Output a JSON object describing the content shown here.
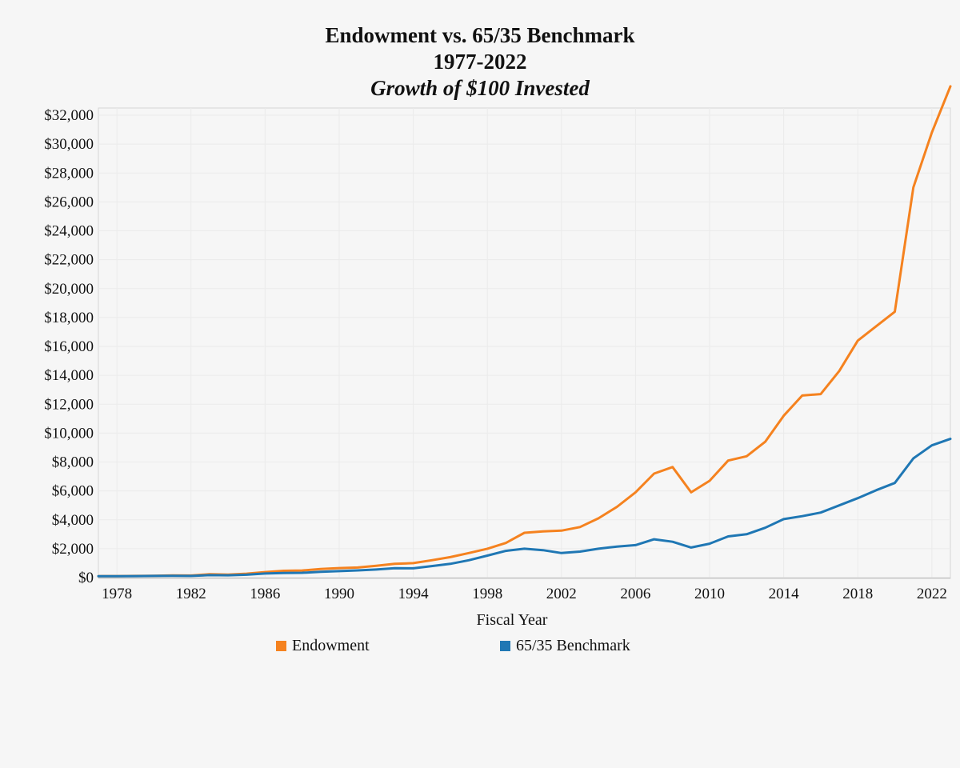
{
  "chart_data": {
    "type": "line",
    "title": "Endowment vs. 65/35 Benchmark",
    "subtitle": "1977-2022",
    "subtitle2": "Growth of $100 Invested",
    "xlabel": "Fiscal Year",
    "ylabel": "",
    "xlim": [
      1977,
      2023
    ],
    "ylim": [
      0,
      32500
    ],
    "x_ticks": [
      "1978",
      "1982",
      "1986",
      "1990",
      "1994",
      "1998",
      "2002",
      "2006",
      "2010",
      "2014",
      "2018",
      "2022"
    ],
    "y_ticks": [
      "$0",
      "$2,000",
      "$4,000",
      "$6,000",
      "$8,000",
      "$10,000",
      "$12,000",
      "$14,000",
      "$16,000",
      "$18,000",
      "$20,000",
      "$22,000",
      "$24,000",
      "$26,000",
      "$28,000",
      "$30,000",
      "$32,000"
    ],
    "y_tick_values": [
      0,
      2000,
      4000,
      6000,
      8000,
      10000,
      12000,
      14000,
      16000,
      18000,
      20000,
      22000,
      24000,
      26000,
      28000,
      30000,
      32000
    ],
    "grid": true,
    "legend_position": "bottom",
    "x": [
      1977,
      1978,
      1979,
      1980,
      1981,
      1982,
      1983,
      1984,
      1985,
      1986,
      1987,
      1988,
      1989,
      1990,
      1991,
      1992,
      1993,
      1994,
      1995,
      1996,
      1997,
      1998,
      1999,
      2000,
      2001,
      2002,
      2003,
      2004,
      2005,
      2006,
      2007,
      2008,
      2009,
      2010,
      2011,
      2012,
      2013,
      2014,
      2015,
      2016,
      2017,
      2018,
      2019,
      2020,
      2021,
      2022,
      2023
    ],
    "series": [
      {
        "name": "Endowment",
        "color": "#f5821f",
        "values": [
          100,
          105,
          115,
          130,
          150,
          145,
          230,
          210,
          270,
          380,
          470,
          490,
          590,
          660,
          700,
          820,
          950,
          1000,
          1200,
          1420,
          1700,
          2000,
          2400,
          3100,
          3200,
          3250,
          3500,
          4100,
          4900,
          5900,
          7200,
          7650,
          5900,
          6700,
          8100,
          8400,
          9400,
          11200,
          12600,
          12700,
          14300,
          16400,
          17400,
          18400,
          27000,
          30800,
          34000
        ]
      },
      {
        "name": "65/35 Benchmark",
        "color": "#1f77b4",
        "values": [
          100,
          102,
          107,
          115,
          120,
          118,
          170,
          160,
          200,
          280,
          320,
          330,
          400,
          450,
          500,
          560,
          650,
          640,
          800,
          950,
          1200,
          1520,
          1850,
          2000,
          1900,
          1700,
          1800,
          2000,
          2150,
          2250,
          2650,
          2480,
          2080,
          2350,
          2850,
          3000,
          3450,
          4050,
          4250,
          4500,
          5000,
          5500,
          6050,
          6550,
          8250,
          9150,
          9600
        ]
      }
    ]
  }
}
